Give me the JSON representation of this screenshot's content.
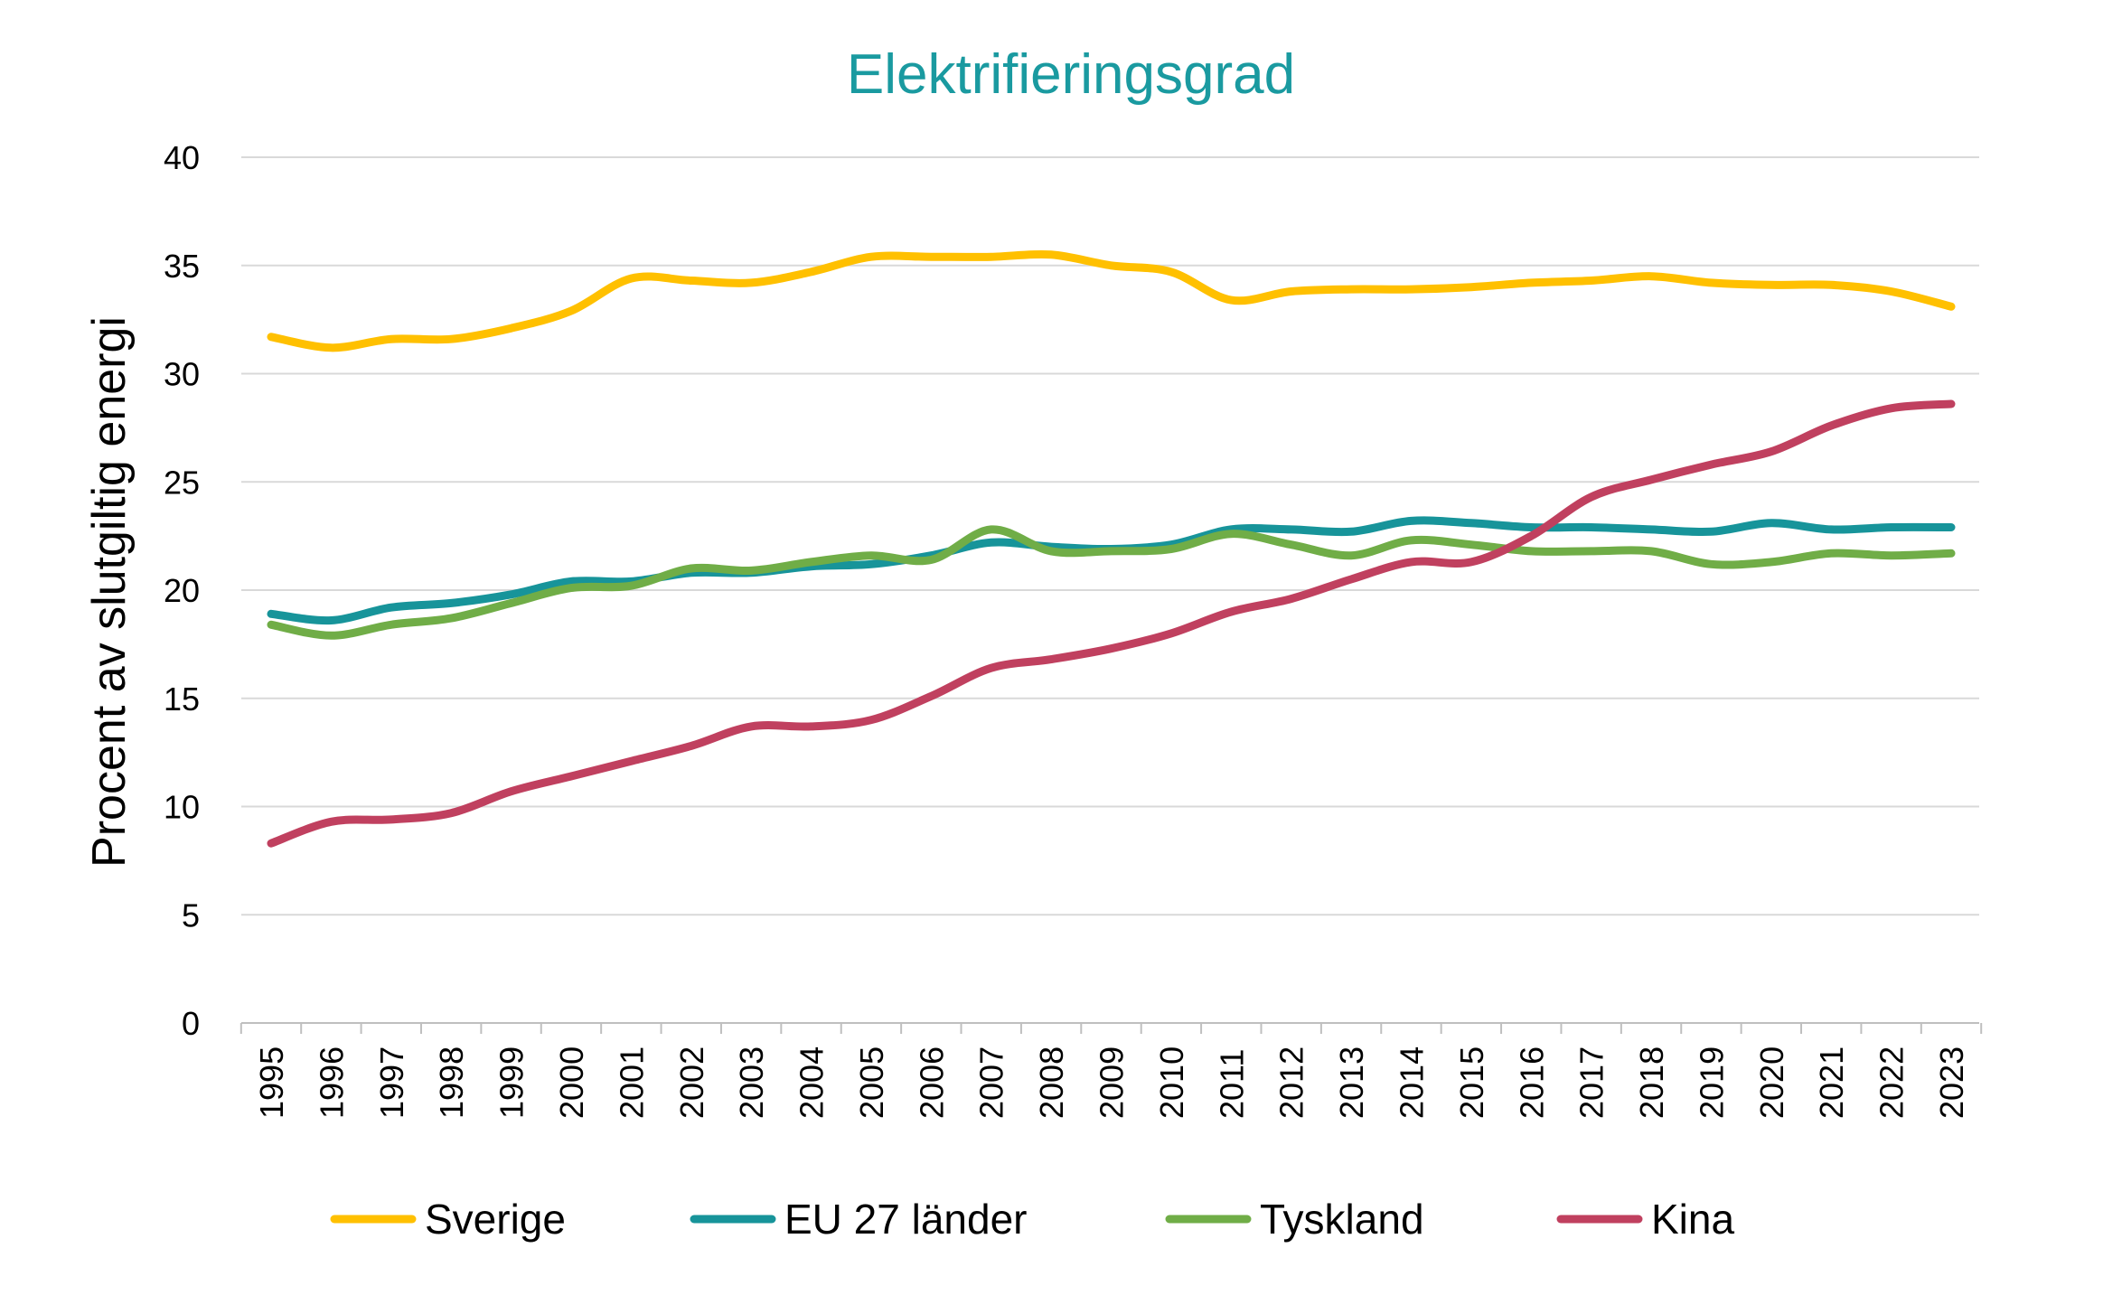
{
  "chart_data": {
    "type": "line",
    "title": "Elektrifieringsgrad",
    "title_color": "#1a9aa0",
    "xlabel": "",
    "ylabel": "Procent av slutgiltig energi",
    "ylim": [
      0,
      40
    ],
    "yticks": [
      0,
      5,
      10,
      15,
      20,
      25,
      30,
      35,
      40
    ],
    "grid": true,
    "legend_position": "bottom",
    "x": [
      "1995",
      "1996",
      "1997",
      "1998",
      "1999",
      "2000",
      "2001",
      "2002",
      "2003",
      "2004",
      "2005",
      "2006",
      "2007",
      "2008",
      "2009",
      "2010",
      "2011",
      "2012",
      "2013",
      "2014",
      "2015",
      "2016",
      "2017",
      "2018",
      "2019",
      "2020",
      "2021",
      "2022",
      "2023"
    ],
    "series": [
      {
        "name": "Sverige",
        "color": "#ffc000",
        "values": [
          31.7,
          31.2,
          31.6,
          31.6,
          32.1,
          32.9,
          34.4,
          34.3,
          34.2,
          34.7,
          35.4,
          35.4,
          35.4,
          35.5,
          35.0,
          34.7,
          33.4,
          33.8,
          33.9,
          33.9,
          34.0,
          34.2,
          34.3,
          34.5,
          34.2,
          34.1,
          34.1,
          33.8,
          33.1
        ]
      },
      {
        "name": "EU 27 länder",
        "color": "#17949a",
        "values": [
          18.9,
          18.6,
          19.2,
          19.4,
          19.8,
          20.4,
          20.4,
          20.8,
          20.8,
          21.1,
          21.2,
          21.6,
          22.2,
          22.0,
          21.9,
          22.1,
          22.8,
          22.8,
          22.7,
          23.2,
          23.1,
          22.9,
          22.9,
          22.8,
          22.7,
          23.1,
          22.8,
          22.9,
          22.9
        ]
      },
      {
        "name": "Tyskland",
        "color": "#70ad47",
        "values": [
          18.4,
          17.9,
          18.4,
          18.7,
          19.4,
          20.1,
          20.2,
          21.0,
          20.9,
          21.3,
          21.6,
          21.4,
          22.8,
          21.8,
          21.8,
          21.9,
          22.6,
          22.1,
          21.6,
          22.3,
          22.1,
          21.8,
          21.8,
          21.8,
          21.2,
          21.3,
          21.7,
          21.6,
          21.7
        ]
      },
      {
        "name": "Kina",
        "color": "#c0405f",
        "values": [
          8.3,
          9.3,
          9.4,
          9.7,
          10.7,
          11.4,
          12.1,
          12.8,
          13.7,
          13.7,
          14.0,
          15.1,
          16.4,
          16.8,
          17.3,
          18.0,
          19.0,
          19.6,
          20.5,
          21.3,
          21.3,
          22.5,
          24.3,
          25.1,
          25.8,
          26.4,
          27.6,
          28.4,
          28.6
        ]
      }
    ]
  }
}
